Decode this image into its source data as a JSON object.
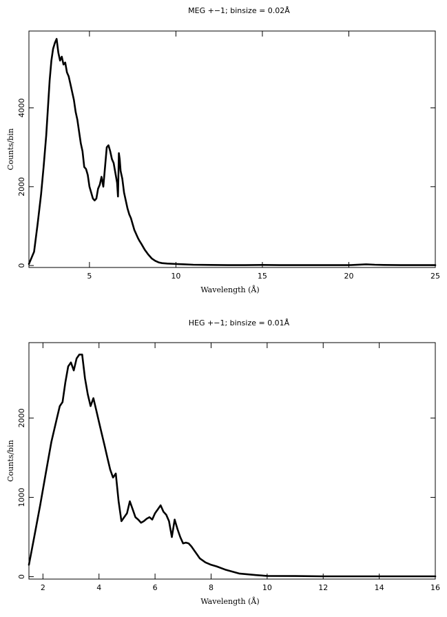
{
  "chart_data": [
    {
      "type": "line",
      "title": "MEG +−1; binsize = 0.02Å",
      "xlabel": "Wavelength (Å)",
      "ylabel": "Counts/bin",
      "xlim": [
        1.5,
        25
      ],
      "ylim": [
        -50,
        5950
      ],
      "xticks": [
        5,
        10,
        15,
        20,
        25
      ],
      "yticks": [
        0,
        2000,
        4000
      ],
      "grid": false,
      "color": "#000000",
      "series": [
        {
          "x": [
            1.5,
            1.8,
            2.0,
            2.2,
            2.35,
            2.5,
            2.6,
            2.7,
            2.8,
            2.9,
            3.0,
            3.1,
            3.2,
            3.3,
            3.4,
            3.5,
            3.6,
            3.7,
            3.8,
            3.9,
            4.0,
            4.1,
            4.2,
            4.3,
            4.4,
            4.5,
            4.6,
            4.7,
            4.8,
            4.9,
            5.0,
            5.1,
            5.2,
            5.3,
            5.4,
            5.5,
            5.6,
            5.7,
            5.8,
            5.9,
            6.0,
            6.1,
            6.2,
            6.3,
            6.4,
            6.5,
            6.6,
            6.65,
            6.7,
            6.75,
            6.8,
            6.9,
            7.0,
            7.1,
            7.2,
            7.3,
            7.4,
            7.5,
            7.6,
            7.7,
            7.8,
            7.9,
            8.0,
            8.2,
            8.4,
            8.6,
            8.8,
            9.0,
            9.2,
            9.5,
            10.0,
            10.5,
            11.0,
            12.0,
            13.0,
            14.0,
            15.0,
            16.0,
            17.0,
            18.0,
            19.0,
            20.0,
            21.0,
            21.5,
            22.0,
            23.0,
            24.0,
            25.0
          ],
          "y": [
            40,
            350,
            1050,
            1800,
            2500,
            3300,
            4000,
            4700,
            5200,
            5500,
            5650,
            5750,
            5400,
            5200,
            5300,
            5100,
            5150,
            4900,
            4800,
            4600,
            4400,
            4200,
            3900,
            3700,
            3400,
            3100,
            2900,
            2500,
            2450,
            2300,
            2000,
            1850,
            1700,
            1650,
            1700,
            1950,
            2050,
            2250,
            2000,
            2500,
            3000,
            3050,
            2900,
            2700,
            2600,
            2350,
            2100,
            1750,
            2850,
            2700,
            2400,
            2200,
            1850,
            1650,
            1450,
            1300,
            1200,
            1050,
            900,
            800,
            700,
            620,
            550,
            400,
            280,
            180,
            120,
            80,
            60,
            50,
            40,
            30,
            20,
            15,
            10,
            10,
            15,
            10,
            10,
            10,
            10,
            10,
            30,
            20,
            15,
            10,
            10,
            10
          ]
        }
      ]
    },
    {
      "type": "line",
      "title": "HEG +−1; binsize = 0.01Å",
      "xlabel": "Wavelength (Å)",
      "ylabel": "Counts/bin",
      "xlim": [
        1.5,
        16
      ],
      "ylim": [
        -30,
        2950
      ],
      "xticks": [
        2,
        4,
        6,
        8,
        10,
        12,
        14,
        16
      ],
      "yticks": [
        0,
        1000,
        2000
      ],
      "grid": false,
      "color": "#000000",
      "series": [
        {
          "x": [
            1.5,
            1.7,
            1.9,
            2.1,
            2.3,
            2.5,
            2.6,
            2.7,
            2.8,
            2.9,
            3.0,
            3.1,
            3.2,
            3.3,
            3.4,
            3.5,
            3.6,
            3.7,
            3.8,
            3.9,
            4.0,
            4.1,
            4.2,
            4.3,
            4.4,
            4.5,
            4.6,
            4.7,
            4.8,
            4.9,
            5.0,
            5.1,
            5.2,
            5.3,
            5.4,
            5.5,
            5.6,
            5.7,
            5.8,
            5.9,
            6.0,
            6.1,
            6.2,
            6.3,
            6.4,
            6.5,
            6.6,
            6.7,
            6.8,
            6.9,
            7.0,
            7.1,
            7.2,
            7.3,
            7.4,
            7.5,
            7.6,
            7.8,
            8.0,
            8.2,
            8.5,
            8.8,
            9.0,
            9.3,
            9.6,
            10.0,
            11.0,
            12.0,
            13.0,
            14.0,
            15.0,
            16.0
          ],
          "y": [
            150,
            520,
            900,
            1300,
            1700,
            2000,
            2150,
            2200,
            2450,
            2650,
            2700,
            2600,
            2750,
            2800,
            2800,
            2500,
            2300,
            2150,
            2250,
            2100,
            1950,
            1800,
            1650,
            1500,
            1350,
            1250,
            1300,
            950,
            700,
            750,
            800,
            950,
            850,
            750,
            720,
            680,
            700,
            730,
            750,
            720,
            800,
            850,
            900,
            820,
            780,
            700,
            500,
            720,
            600,
            500,
            420,
            430,
            420,
            380,
            330,
            280,
            230,
            180,
            150,
            130,
            90,
            60,
            40,
            30,
            20,
            10,
            8,
            5,
            5,
            5,
            5,
            5
          ]
        }
      ]
    }
  ]
}
